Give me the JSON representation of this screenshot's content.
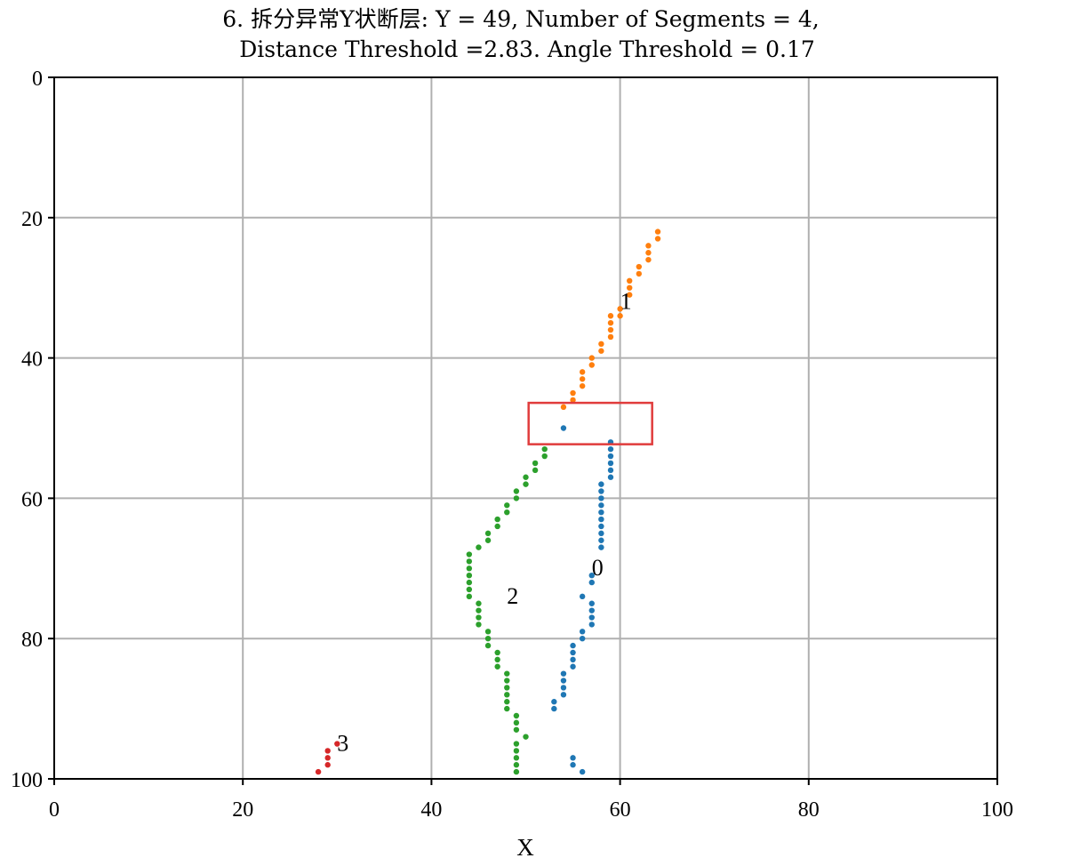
{
  "chart_data": {
    "type": "scatter",
    "title_line1": "6. 拆分异常Y状断层: Y = 49, Number of Segments = 4,",
    "title_line2": "Distance Threshold =2.83. Angle Threshold = 0.17",
    "xlabel": "X",
    "ylabel": "",
    "xlim": [
      0,
      100
    ],
    "ylim": [
      0,
      100
    ],
    "y_axis_inverted": true,
    "grid": true,
    "x_ticks": [
      0,
      20,
      40,
      60,
      80,
      100
    ],
    "y_ticks": [
      0,
      20,
      40,
      60,
      80,
      100
    ],
    "series": [
      {
        "color": "#1f77b4",
        "points": [
          [
            54,
            50
          ],
          [
            59,
            52
          ],
          [
            59,
            53
          ],
          [
            59,
            54
          ],
          [
            59,
            55
          ],
          [
            59,
            56
          ],
          [
            59,
            57
          ],
          [
            58,
            58
          ],
          [
            58,
            59
          ],
          [
            58,
            60
          ],
          [
            58,
            61
          ],
          [
            58,
            62
          ],
          [
            58,
            63
          ],
          [
            58,
            64
          ],
          [
            58,
            65
          ],
          [
            58,
            66
          ],
          [
            58,
            67
          ],
          [
            57,
            71
          ],
          [
            57,
            72
          ],
          [
            56,
            74
          ],
          [
            57,
            75
          ],
          [
            57,
            76
          ],
          [
            57,
            77
          ],
          [
            57,
            78
          ],
          [
            56,
            79
          ],
          [
            56,
            80
          ],
          [
            55,
            81
          ],
          [
            55,
            82
          ],
          [
            55,
            83
          ],
          [
            55,
            84
          ],
          [
            54,
            85
          ],
          [
            54,
            86
          ],
          [
            54,
            87
          ],
          [
            54,
            88
          ],
          [
            53,
            89
          ],
          [
            53,
            90
          ],
          [
            55,
            97
          ],
          [
            55,
            98
          ],
          [
            56,
            99
          ]
        ]
      },
      {
        "color": "#ff7f0e",
        "points": [
          [
            64,
            22
          ],
          [
            64,
            23
          ],
          [
            63,
            24
          ],
          [
            63,
            25
          ],
          [
            63,
            26
          ],
          [
            62,
            27
          ],
          [
            62,
            28
          ],
          [
            61,
            29
          ],
          [
            61,
            30
          ],
          [
            61,
            31
          ],
          [
            60,
            33
          ],
          [
            60,
            34
          ],
          [
            59,
            34
          ],
          [
            59,
            35
          ],
          [
            59,
            36
          ],
          [
            59,
            37
          ],
          [
            58,
            38
          ],
          [
            58,
            39
          ],
          [
            57,
            40
          ],
          [
            57,
            41
          ],
          [
            56,
            42
          ],
          [
            56,
            43
          ],
          [
            56,
            44
          ],
          [
            55,
            45
          ],
          [
            55,
            46
          ],
          [
            54,
            47
          ]
        ]
      },
      {
        "color": "#2ca02c",
        "points": [
          [
            52,
            53
          ],
          [
            52,
            54
          ],
          [
            51,
            55
          ],
          [
            51,
            56
          ],
          [
            50,
            57
          ],
          [
            50,
            58
          ],
          [
            49,
            59
          ],
          [
            49,
            60
          ],
          [
            48,
            61
          ],
          [
            48,
            62
          ],
          [
            47,
            63
          ],
          [
            47,
            64
          ],
          [
            46,
            65
          ],
          [
            46,
            66
          ],
          [
            45,
            67
          ],
          [
            44,
            68
          ],
          [
            44,
            69
          ],
          [
            44,
            70
          ],
          [
            44,
            71
          ],
          [
            44,
            72
          ],
          [
            44,
            73
          ],
          [
            44,
            74
          ],
          [
            45,
            75
          ],
          [
            45,
            76
          ],
          [
            45,
            77
          ],
          [
            45,
            78
          ],
          [
            46,
            79
          ],
          [
            46,
            80
          ],
          [
            46,
            81
          ],
          [
            47,
            82
          ],
          [
            47,
            83
          ],
          [
            47,
            84
          ],
          [
            48,
            85
          ],
          [
            48,
            86
          ],
          [
            48,
            87
          ],
          [
            48,
            88
          ],
          [
            48,
            89
          ],
          [
            48,
            90
          ],
          [
            49,
            91
          ],
          [
            49,
            92
          ],
          [
            49,
            93
          ],
          [
            50,
            94
          ],
          [
            49,
            95
          ],
          [
            49,
            96
          ],
          [
            49,
            97
          ],
          [
            49,
            98
          ],
          [
            49,
            99
          ]
        ]
      },
      {
        "color": "#d62728",
        "points": [
          [
            30,
            95
          ],
          [
            29,
            96
          ],
          [
            29,
            97
          ],
          [
            29,
            98
          ],
          [
            28,
            99
          ]
        ]
      }
    ],
    "annotations": [
      {
        "text": "1",
        "x": 60,
        "y": 33
      },
      {
        "text": "0",
        "x": 57,
        "y": 71
      },
      {
        "text": "2",
        "x": 48,
        "y": 75
      },
      {
        "text": "3",
        "x": 30,
        "y": 96
      }
    ],
    "highlight_box": {
      "x0": 50.3,
      "x1": 63.4,
      "y0": 46.4,
      "y1": 52.3,
      "color": "#e03c3c"
    }
  }
}
